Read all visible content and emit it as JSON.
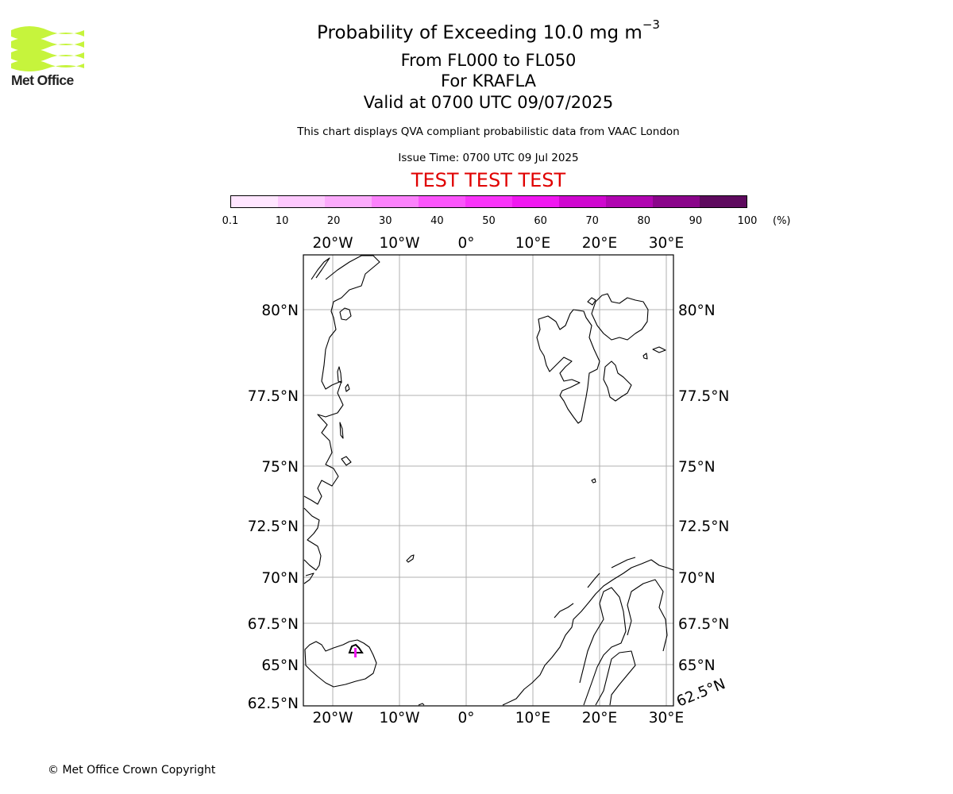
{
  "title": {
    "line1_main": "Probability of Exceeding 10.0 mg m",
    "line1_exp": "−3",
    "line2": "From FL000 to FL050",
    "line3": "For KRAFLA",
    "line4": "Valid at 0700 UTC 09/07/2025"
  },
  "disclaimer": "This chart displays QVA compliant probabilistic data from VAAC London",
  "issue_time": "Issue Time: 0700 UTC 09 Jul 2025",
  "test_banner": "TEST TEST TEST",
  "logo": {
    "text": "Met Office",
    "color": "#c6f43c"
  },
  "colorbar": {
    "unit": "(%)",
    "ticks": [
      "0.1",
      "10",
      "20",
      "30",
      "40",
      "50",
      "60",
      "70",
      "80",
      "90",
      "100"
    ],
    "colors": [
      "#ffe6ff",
      "#fdc9fd",
      "#fbabfb",
      "#fb82fb",
      "#fb55fb",
      "#f934f9",
      "#f018f0",
      "#cf07cf",
      "#b005b0",
      "#8a058a",
      "#5e0a5e"
    ]
  },
  "map": {
    "lon_labels_top": [
      "20°W",
      "10°W",
      "0°",
      "10°E",
      "20°E",
      "30°E"
    ],
    "lon_labels_bottom": [
      "20°W",
      "10°W",
      "0°",
      "10°E",
      "20°E",
      "30°E"
    ],
    "lat_labels_left": [
      "80°N",
      "77.5°N",
      "75°N",
      "72.5°N",
      "70°N",
      "67.5°N",
      "65°N",
      "62.5°N"
    ],
    "lat_labels_right": [
      "80°N",
      "77.5°N",
      "75°N",
      "72.5°N",
      "70°N",
      "67.5°N",
      "65°N"
    ],
    "lat_label_corner": "62.5°N",
    "volcano": "KRAFLA",
    "ash_color": "#f018f0"
  },
  "copyright": "© Met Office Crown Copyright"
}
